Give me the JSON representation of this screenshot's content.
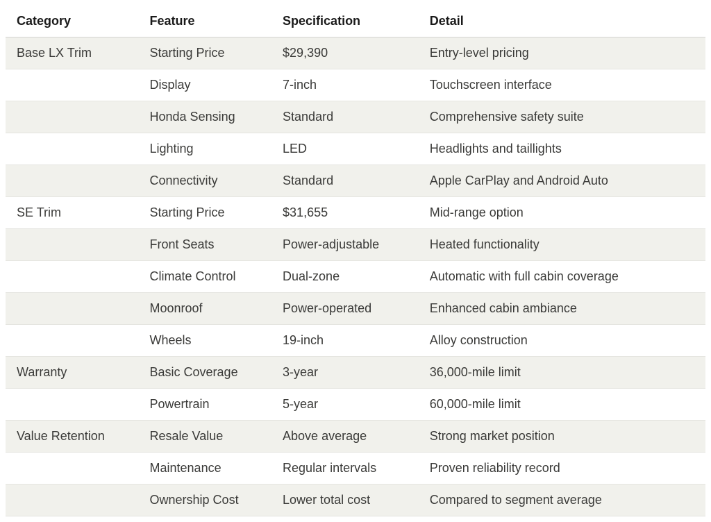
{
  "table": {
    "type": "table",
    "background_color": "#ffffff",
    "stripe_color": "#f1f1ec",
    "border_color": "#e5e5e0",
    "header_border_color": "#d4d4d0",
    "text_color": "#3a3a38",
    "header_text_color": "#1a1a1a",
    "font_size": 18,
    "header_font_weight": 700,
    "column_widths_pct": [
      19,
      19,
      21,
      41
    ],
    "columns": [
      "Category",
      "Feature",
      "Specification",
      "Detail"
    ],
    "rows": [
      [
        "Base LX Trim",
        "Starting Price",
        "$29,390",
        "Entry-level pricing"
      ],
      [
        "",
        "Display",
        "7-inch",
        "Touchscreen interface"
      ],
      [
        "",
        "Honda Sensing",
        "Standard",
        "Comprehensive safety suite"
      ],
      [
        "",
        "Lighting",
        "LED",
        "Headlights and taillights"
      ],
      [
        "",
        "Connectivity",
        "Standard",
        "Apple CarPlay and Android Auto"
      ],
      [
        "SE Trim",
        "Starting Price",
        "$31,655",
        "Mid-range option"
      ],
      [
        "",
        "Front Seats",
        "Power-adjustable",
        "Heated functionality"
      ],
      [
        "",
        "Climate Control",
        "Dual-zone",
        "Automatic with full cabin coverage"
      ],
      [
        "",
        "Moonroof",
        "Power-operated",
        "Enhanced cabin ambiance"
      ],
      [
        "",
        "Wheels",
        "19-inch",
        "Alloy construction"
      ],
      [
        "Warranty",
        "Basic Coverage",
        "3-year",
        "36,000-mile limit"
      ],
      [
        "",
        "Powertrain",
        "5-year",
        "60,000-mile limit"
      ],
      [
        "Value Retention",
        "Resale Value",
        "Above average",
        "Strong market position"
      ],
      [
        "",
        "Maintenance",
        "Regular intervals",
        "Proven reliability record"
      ],
      [
        "",
        "Ownership Cost",
        "Lower total cost",
        "Compared to segment average"
      ]
    ]
  }
}
